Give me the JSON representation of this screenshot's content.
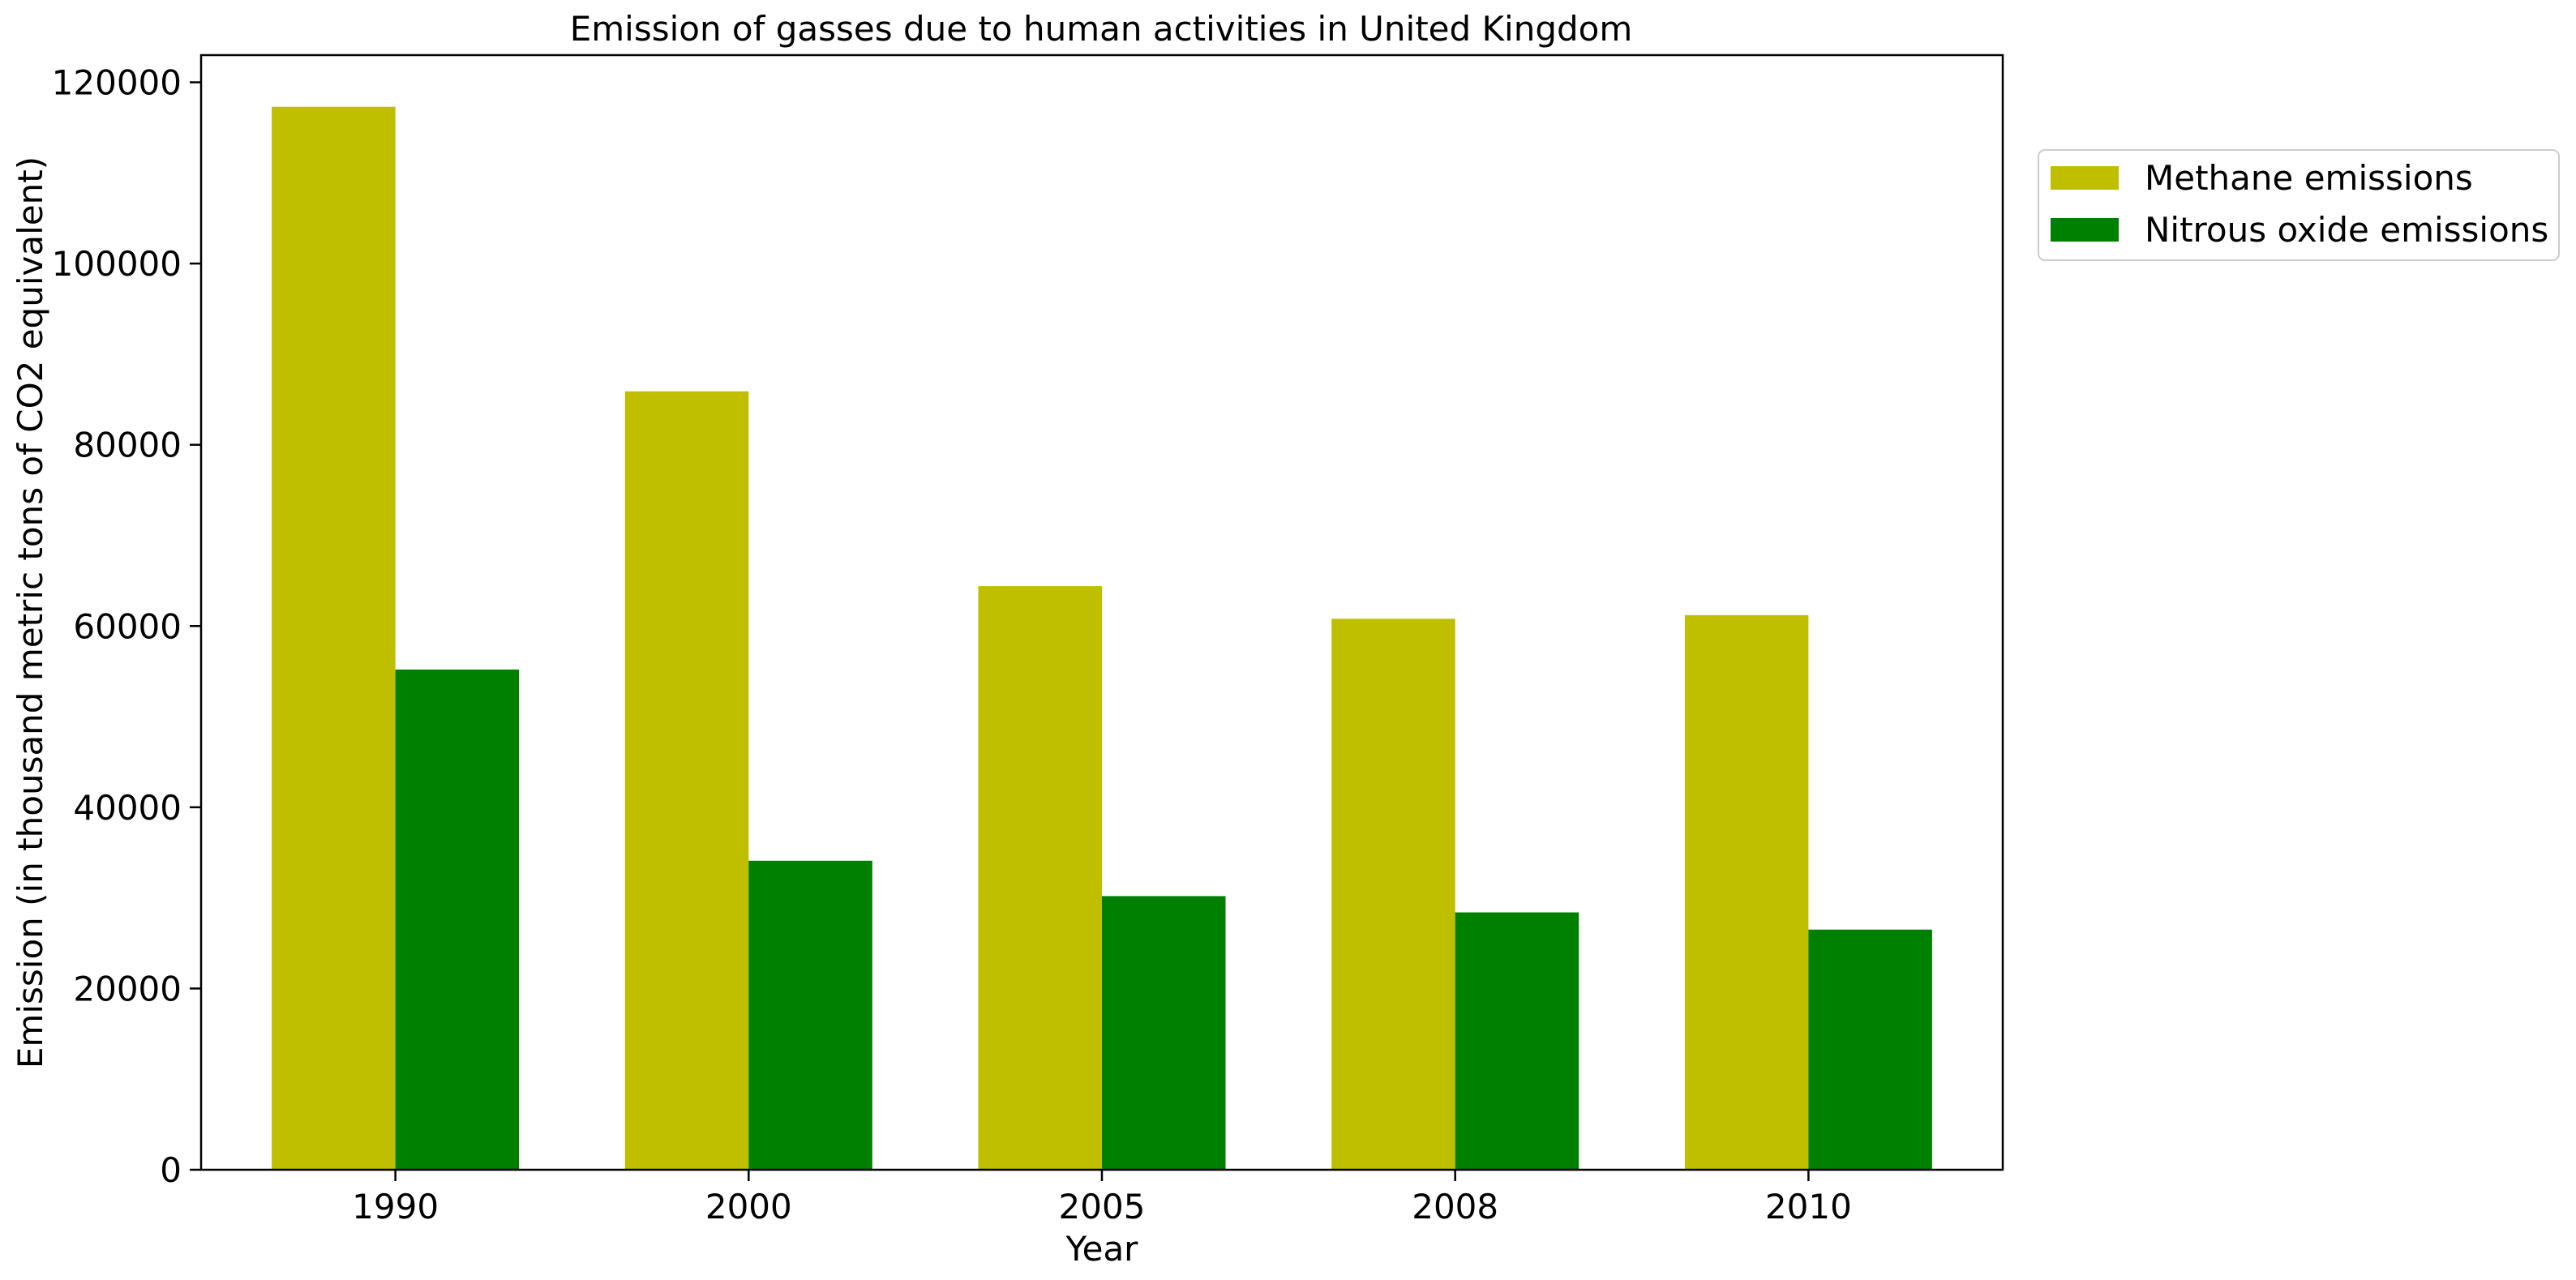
{
  "chart_data": {
    "type": "bar",
    "title": "Emission of gasses due to human activities in United Kingdom",
    "xlabel": "Year",
    "ylabel": "Emission (in thousand metric tons of CO2 equivalent)",
    "categories": [
      "1990",
      "2000",
      "2005",
      "2008",
      "2010"
    ],
    "series": [
      {
        "name": "Methane emissions",
        "color": "#bfbf00",
        "values": [
          117300,
          85900,
          64400,
          60800,
          61200
        ]
      },
      {
        "name": "Nitrous oxide emissions",
        "color": "#008000",
        "values": [
          55200,
          34100,
          30200,
          28400,
          26500
        ]
      }
    ],
    "ylim": [
      0,
      123000
    ],
    "yticks": [
      0,
      20000,
      40000,
      60000,
      80000,
      100000,
      120000
    ],
    "legend": "upper-right-outside",
    "grid": false
  }
}
